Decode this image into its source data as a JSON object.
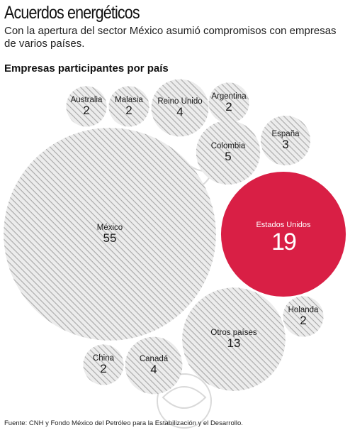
{
  "header": {
    "title": "Acuerdos energéticos",
    "subtitle": "Con la apertura del sector México asumió compromisos con empresas de varios países.",
    "section_title": "Empresas participantes por país"
  },
  "footer": {
    "source": "Fuente: CNH y Fondo México del Petróleo para la Estabilización y el Desarrollo."
  },
  "colors": {
    "highlight": "#d91f45",
    "circle_fill": "#ececec",
    "hatch": "#a8a8a8",
    "text": "#1a1a1a",
    "highlight_text": "#ffffff"
  },
  "chart_data": {
    "type": "bubble",
    "title": "Empresas participantes por país",
    "categories": [
      "Australia",
      "Malasia",
      "Reino Unido",
      "Argentina",
      "España",
      "Colombia",
      "México",
      "Estados Unidos",
      "Holanda",
      "Otros países",
      "China",
      "Canadá"
    ],
    "values": [
      2,
      2,
      4,
      2,
      3,
      5,
      55,
      19,
      2,
      13,
      2,
      4
    ],
    "highlighted": "Estados Unidos"
  }
}
